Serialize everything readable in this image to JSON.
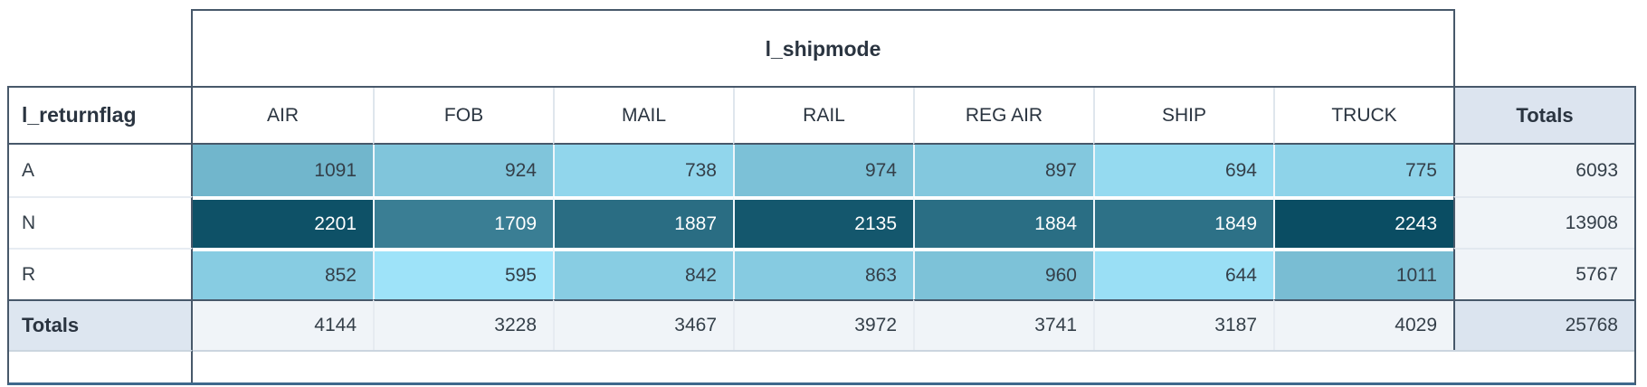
{
  "header": {
    "column_field": "l_shipmode",
    "row_field": "l_returnflag",
    "totals_label": "Totals"
  },
  "chart_data": {
    "type": "heatmap",
    "title": "",
    "columns": [
      "AIR",
      "FOB",
      "MAIL",
      "RAIL",
      "REG AIR",
      "SHIP",
      "TRUCK"
    ],
    "rows": [
      {
        "label": "A",
        "values": [
          1091,
          924,
          738,
          974,
          897,
          694,
          775
        ],
        "total": 6093
      },
      {
        "label": "N",
        "values": [
          2201,
          1709,
          1887,
          2135,
          1884,
          1849,
          2243
        ],
        "total": 13908
      },
      {
        "label": "R",
        "values": [
          852,
          595,
          842,
          863,
          960,
          644,
          1011
        ],
        "total": 5767
      }
    ],
    "column_totals": [
      4144,
      3228,
      3467,
      3972,
      3741,
      3187,
      4029
    ],
    "grand_total": 25768,
    "totals_label": "Totals",
    "color_scale": {
      "min_value": 595,
      "max_value": 2243,
      "min_color": "#9EE3F9",
      "max_color": "#0A4D63",
      "light_text_threshold": 0.5
    }
  },
  "colors": {
    "border_dark": "#47586A",
    "border_light": "#DFE6ED",
    "cell_separator": "#EDF5FA",
    "row_gap": "#FFFFFF",
    "totals_row_bg": "#F0F4F8",
    "totals_header_bg": "#DCE4EF",
    "totals_label_bg": "#DDE6F0",
    "grand_total_bg": "#DBE4EF",
    "bottom_accent": "#3E688C",
    "header_text": "#2A3440",
    "value_text": "#343F49",
    "value_text_light": "#FFFFFF"
  }
}
